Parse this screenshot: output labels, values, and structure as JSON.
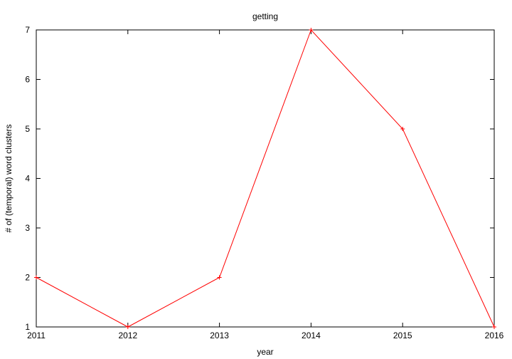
{
  "chart_data": {
    "type": "line",
    "title": "getting",
    "xlabel": "year",
    "ylabel": "# of (temporal) word clusters",
    "x": [
      2011,
      2012,
      2013,
      2014,
      2015,
      2016
    ],
    "series": [
      {
        "values": [
          2,
          1,
          2,
          7,
          5,
          1
        ],
        "color": "#ff0000",
        "marker": "plus"
      }
    ],
    "xlim": [
      2011,
      2016
    ],
    "ylim": [
      1,
      7
    ],
    "xticks": [
      "2011",
      "2012",
      "2013",
      "2014",
      "2015",
      "2016"
    ],
    "yticks": [
      "1",
      "2",
      "3",
      "4",
      "5",
      "6",
      "7"
    ],
    "grid": false,
    "legend": "none"
  }
}
